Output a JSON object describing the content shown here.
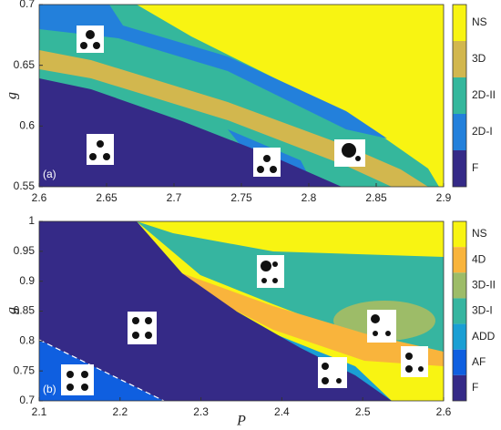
{
  "chart_data": [
    {
      "type": "phase-diagram",
      "panel_label": "(a)",
      "y_label": "g",
      "xlim": [
        2.6,
        2.9
      ],
      "xticks": [
        2.6,
        2.65,
        2.7,
        2.75,
        2.8,
        2.85,
        2.9
      ],
      "ylim": [
        0.55,
        0.7
      ],
      "yticks": [
        0.55,
        0.6,
        0.65,
        0.7
      ],
      "phases": [
        {
          "name": "NS",
          "color": "#f8f412"
        },
        {
          "name": "3D",
          "color": "#d2b74e"
        },
        {
          "name": "2D-II",
          "color": "#35b79c"
        },
        {
          "name": "2D-I",
          "color": "#2380db"
        },
        {
          "name": "F",
          "color": "#352a87"
        }
      ]
    },
    {
      "type": "phase-diagram",
      "panel_label": "(b)",
      "y_label": "g",
      "x_label": "P",
      "xlim": [
        2.1,
        2.6
      ],
      "xticks": [
        2.1,
        2.2,
        2.3,
        2.4,
        2.5,
        2.6
      ],
      "ylim": [
        0.7,
        1
      ],
      "yticks": [
        0.7,
        0.75,
        0.8,
        0.85,
        0.9,
        0.95,
        1
      ],
      "phases": [
        {
          "name": "NS",
          "color": "#f8f412"
        },
        {
          "name": "4D",
          "color": "#f9b43c"
        },
        {
          "name": "3D-II",
          "color": "#9dbc68"
        },
        {
          "name": "3D-I",
          "color": "#36b5a0"
        },
        {
          "name": "ADD",
          "color": "#1a9fd4"
        },
        {
          "name": "AF",
          "color": "#0f5fe0"
        },
        {
          "name": "F",
          "color": "#352a87"
        }
      ]
    }
  ]
}
